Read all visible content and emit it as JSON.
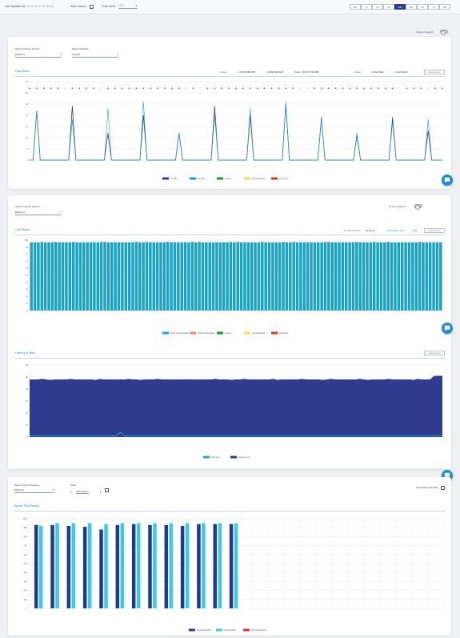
{
  "topbar": {
    "last_updated_label": "Last Updated at:",
    "last_updated_value": "2023-03-07 07:58:39",
    "auto_refresh_label": "Auto refresh",
    "time_zone_label": "Time Zone:",
    "time_zone_value": "UTC",
    "ranges": [
      "15m",
      "1h",
      "3h",
      "6h",
      "12h",
      "24h",
      "3d",
      "7d",
      "30d"
    ],
    "active_range": "12h"
  },
  "custom_search_label": "Custom Search",
  "card1": {
    "source_label": "Select Internet Source",
    "source_value": "Ethernet",
    "network_label": "Select Network",
    "network_value": "Overall",
    "title": "Data Rates",
    "usage_label": "Usage:",
    "usage_down": "↓ 8,667.083 MB",
    "usage_up": "↑ 8,068.022 MB",
    "usage_total": "Total : 16,535.755 MB",
    "rates_label": "Rates:",
    "rates_down": "↓ 1.654 Mbps",
    "rates_up": "↑ 1.613 Mbps",
    "reset_label": "Reset Zoom"
  },
  "card2": {
    "source_label": "Select Internet Source",
    "source_value": "Ethernet",
    "custom_search_label": "Custom Search",
    "title": "Link Status",
    "probe_label": "Probe Success:",
    "probe_value": "99.38 %",
    "down_label": "Link Down Time:",
    "down_value": "0 %",
    "reset_label": "Reset Zoom"
  },
  "card3": {
    "title": "Latency & Jitter",
    "reset_label": "Reset Zoom"
  },
  "card4": {
    "source_label": "Select Internet Source",
    "source_value": "Ethernet",
    "date_label": "Date",
    "date_value": "2023-03-07",
    "extender_label": "Show Raw Extender",
    "title": "Speed Test Results"
  },
  "icons": {
    "chat": "chat-bubble-icon",
    "calendar": "calendar-icon"
  },
  "colors": {
    "navy": "#2f3b8f",
    "teal": "#1aa3c4",
    "green": "#2e8b3a",
    "yellow": "#f2e24b",
    "red": "#e0312b",
    "link_blue": "#2f7fd1",
    "cyan": "#3dc8e8",
    "dark_blue": "#1f3a93",
    "jitter": "#23a8c8"
  },
  "chart_data": [
    {
      "type": "line",
      "name": "data-rates",
      "ylim": [
        0,
        35
      ],
      "yticks": [
        0,
        5,
        10,
        15,
        20,
        25,
        30,
        35
      ],
      "x_count": 72,
      "series": [
        {
          "name": "Tx Rate",
          "color": "#2f3b8f",
          "peaks": [
            [
              2,
              22
            ],
            [
              12,
              24
            ],
            [
              22,
              12
            ],
            [
              32,
              20
            ],
            [
              42,
              12
            ],
            [
              52,
              24
            ],
            [
              62,
              20
            ],
            [
              72,
              25
            ],
            [
              82,
              19
            ],
            [
              92,
              11
            ],
            [
              102,
              19
            ],
            [
              112,
              13
            ]
          ]
        },
        {
          "name": "Rx Rate",
          "color": "#1aa3c4",
          "peaks": [
            [
              2,
              22
            ],
            [
              12,
              18
            ],
            [
              22,
              23
            ],
            [
              32,
              26
            ],
            [
              42,
              12
            ],
            [
              52,
              20
            ],
            [
              62,
              23
            ],
            [
              72,
              26
            ],
            [
              82,
              19
            ],
            [
              92,
              12
            ],
            [
              102,
              17
            ],
            [
              112,
              18
            ]
          ]
        }
      ],
      "status_series": [
        {
          "name": "Link Up",
          "color": "#2e8b3a"
        },
        {
          "name": "Link Degraded",
          "color": "#f2e24b"
        },
        {
          "name": "Link Down",
          "color": "#e0312b"
        }
      ],
      "legend": [
        "Tx Rate",
        "Rx Rate",
        "Link Up",
        "Link Degraded",
        "Link Down"
      ]
    },
    {
      "type": "bar",
      "name": "link-status",
      "ylim": [
        0,
        100
      ],
      "yticks": [
        0,
        10,
        20,
        30,
        40,
        50,
        60,
        70,
        80,
        90,
        100
      ],
      "bar_count": 118,
      "value": 97,
      "legend": [
        "Probe Success Rate",
        "Probe Failure Rate",
        "Link Up",
        "Link Degraded",
        "Link Down"
      ]
    },
    {
      "type": "area",
      "name": "latency-jitter",
      "ylim": [
        0,
        60
      ],
      "yticks": [
        0,
        10,
        20,
        30,
        40,
        50,
        60
      ],
      "latency_level": 48,
      "jitter_level": 1,
      "legend": [
        "Jitter (ms)",
        "Latency (ms)"
      ]
    },
    {
      "type": "bar",
      "name": "speed-test",
      "ylim": [
        0,
        1000
      ],
      "yticks": [
        0,
        100,
        200,
        300,
        400,
        500,
        600,
        700,
        800,
        900,
        1000
      ],
      "series": [
        {
          "name": "Download Mbps",
          "values": [
            930,
            930,
            920,
            910,
            880,
            930,
            940,
            930,
            930,
            920,
            940,
            940,
            940
          ]
        },
        {
          "name": "Upload Mbps",
          "values": [
            920,
            950,
            950,
            950,
            940,
            950,
            950,
            950,
            950,
            950,
            950,
            950,
            950
          ]
        }
      ],
      "slots": 26,
      "legend": [
        "Download Mbps",
        "Upload Mbps",
        "Download Failed"
      ]
    }
  ]
}
